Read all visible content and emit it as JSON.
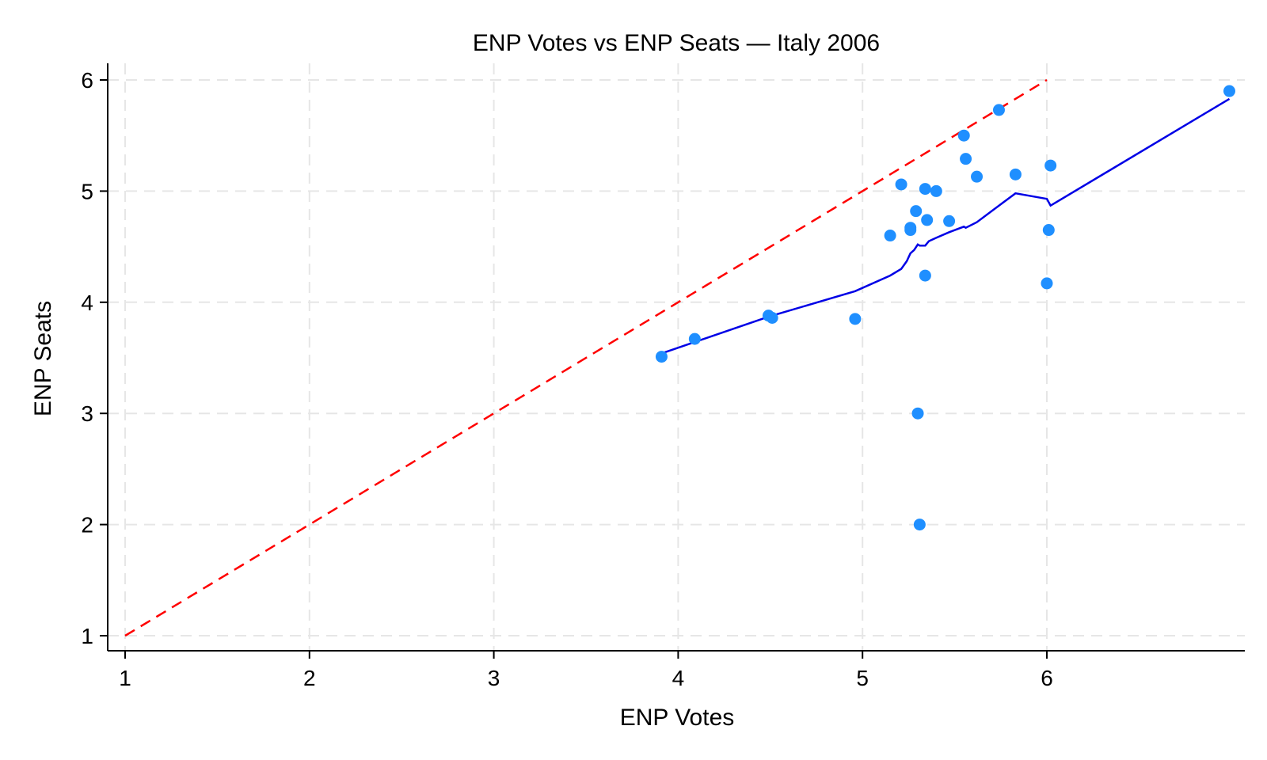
{
  "chart_data": {
    "type": "scatter",
    "title": "ENP Votes vs ENP Seats — Italy 2006",
    "xlabel": "ENP Votes",
    "ylabel": "ENP Seats",
    "xlim": [
      1,
      6.95
    ],
    "ylim": [
      1,
      6.1
    ],
    "xticks": [
      1,
      2,
      3,
      4,
      5,
      6
    ],
    "yticks": [
      1,
      2,
      3,
      4,
      5,
      6
    ],
    "grid": true,
    "points_color": "#1f8fff",
    "points": [
      [
        3.91,
        3.51
      ],
      [
        4.09,
        3.67
      ],
      [
        4.49,
        3.88
      ],
      [
        4.51,
        3.86
      ],
      [
        4.96,
        3.85
      ],
      [
        5.15,
        4.6
      ],
      [
        5.21,
        5.06
      ],
      [
        5.26,
        4.67
      ],
      [
        5.26,
        4.65
      ],
      [
        5.29,
        4.82
      ],
      [
        5.3,
        3.0
      ],
      [
        5.31,
        2.0
      ],
      [
        5.34,
        4.24
      ],
      [
        5.34,
        5.02
      ],
      [
        5.35,
        4.74
      ],
      [
        5.4,
        5.0
      ],
      [
        5.47,
        4.73
      ],
      [
        5.55,
        5.5
      ],
      [
        5.56,
        5.29
      ],
      [
        5.62,
        5.13
      ],
      [
        5.74,
        5.73
      ],
      [
        5.83,
        5.15
      ],
      [
        6.0,
        4.17
      ],
      [
        6.01,
        4.65
      ],
      [
        6.02,
        5.23
      ],
      [
        6.99,
        5.9
      ]
    ],
    "reference_line": {
      "color": "#ff0000",
      "dashed": true,
      "points": [
        [
          1,
          1
        ],
        [
          6,
          6
        ]
      ]
    },
    "smoothed_line": {
      "color": "#0000e6",
      "points": [
        [
          3.91,
          3.54
        ],
        [
          4.49,
          3.87
        ],
        [
          4.96,
          4.1
        ],
        [
          5.15,
          4.24
        ],
        [
          5.21,
          4.3
        ],
        [
          5.24,
          4.37
        ],
        [
          5.26,
          4.44
        ],
        [
          5.28,
          4.47
        ],
        [
          5.3,
          4.52
        ],
        [
          5.31,
          4.51
        ],
        [
          5.34,
          4.51
        ],
        [
          5.36,
          4.55
        ],
        [
          5.4,
          4.58
        ],
        [
          5.47,
          4.63
        ],
        [
          5.55,
          4.68
        ],
        [
          5.56,
          4.67
        ],
        [
          5.62,
          4.72
        ],
        [
          5.74,
          4.87
        ],
        [
          5.83,
          4.98
        ],
        [
          6.0,
          4.93
        ],
        [
          6.02,
          4.87
        ],
        [
          6.99,
          5.83
        ]
      ]
    }
  }
}
